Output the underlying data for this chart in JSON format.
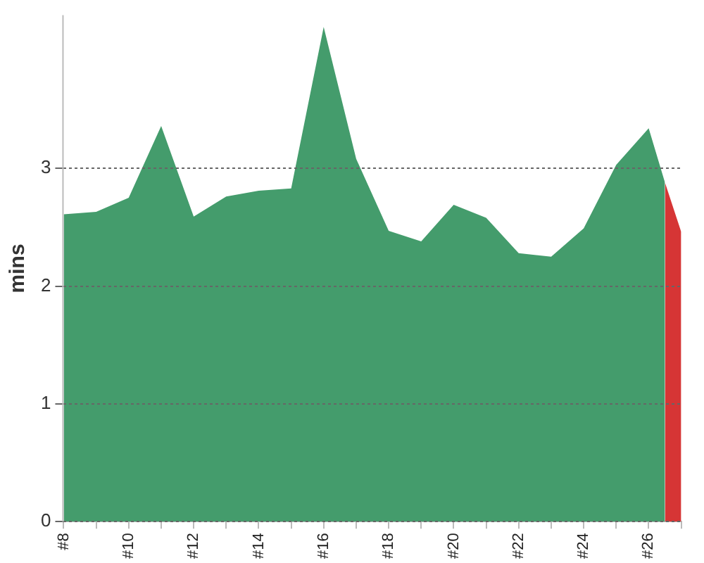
{
  "chart_data": {
    "type": "area",
    "ylabel": "mins",
    "xlim": [
      8,
      27
    ],
    "ylim": [
      0,
      4.3
    ],
    "xticks": [
      {
        "value": 8,
        "label": "#8"
      },
      {
        "value": 9,
        "label": null
      },
      {
        "value": 10,
        "label": "#10"
      },
      {
        "value": 11,
        "label": null
      },
      {
        "value": 12,
        "label": "#12"
      },
      {
        "value": 13,
        "label": null
      },
      {
        "value": 14,
        "label": "#14"
      },
      {
        "value": 15,
        "label": null
      },
      {
        "value": 16,
        "label": "#16"
      },
      {
        "value": 17,
        "label": null
      },
      {
        "value": 18,
        "label": "#18"
      },
      {
        "value": 19,
        "label": null
      },
      {
        "value": 20,
        "label": "#20"
      },
      {
        "value": 21,
        "label": null
      },
      {
        "value": 22,
        "label": "#22"
      },
      {
        "value": 23,
        "label": null
      },
      {
        "value": 24,
        "label": "#24"
      },
      {
        "value": 25,
        "label": null
      },
      {
        "value": 26,
        "label": "#26"
      },
      {
        "value": 27,
        "label": null
      }
    ],
    "yticks": [
      0,
      1,
      2,
      3
    ],
    "grid": "y",
    "legend": false,
    "series": [
      {
        "color": "#449c6c",
        "x": [
          8,
          9,
          10,
          11,
          12,
          13,
          14,
          15,
          16,
          17,
          18,
          19,
          20,
          21,
          22,
          23,
          24,
          25,
          26,
          26.5
        ],
        "values": [
          2.61,
          2.63,
          2.75,
          3.36,
          2.59,
          2.76,
          2.81,
          2.83,
          4.2,
          3.08,
          2.47,
          2.38,
          2.69,
          2.58,
          2.28,
          2.25,
          2.49,
          3.03,
          3.34,
          2.88
        ]
      },
      {
        "color": "#d63535",
        "x": [
          26.5,
          27
        ],
        "values": [
          2.88,
          2.46
        ]
      }
    ]
  }
}
